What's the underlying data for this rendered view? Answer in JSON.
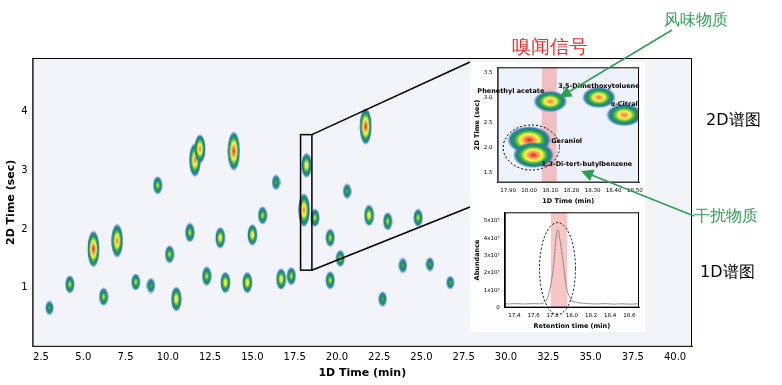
{
  "chart_data": [
    {
      "type": "scatter",
      "xlabel": "1D Time (min)",
      "ylabel": "2D Time (sec)",
      "xlim": [
        2,
        41
      ],
      "xticks": [
        2.5,
        {
          "value": 5,
          "label": "5.0"
        },
        7.5,
        {
          "value": 10,
          "label": "10.0"
        },
        12.5,
        {
          "value": 15,
          "label": "15.0"
        },
        17.5,
        {
          "value": 20,
          "label": "20.0"
        },
        22.5,
        {
          "value": 25,
          "label": "25.0"
        },
        27.5,
        {
          "value": 30,
          "label": "30.0"
        },
        32.5,
        {
          "value": 35,
          "label": "35.0"
        },
        37.5,
        {
          "value": 40,
          "label": "40.0"
        }
      ],
      "ylim": [
        0,
        4.9
      ],
      "yticks": [
        1,
        2,
        3,
        4
      ],
      "grid": false,
      "peaks": {
        "x": [
          3.0,
          4.2,
          5.6,
          7.0,
          6.2,
          9.4,
          9.0,
          10.1,
          10.5,
          11.3,
          11.6,
          11.9,
          13.1,
          13.9,
          13.4,
          14.7,
          15.0,
          15.6,
          16.4,
          16.7,
          17.3,
          18.05,
          18.2,
          18.7,
          19.6,
          19.6,
          20.2,
          20.6,
          21.7,
          21.9,
          22.7,
          23.0,
          23.9,
          24.8,
          26.7,
          12.3,
          8.1,
          25.5
        ],
        "y": [
          0.66,
          1.06,
          1.66,
          1.8,
          0.85,
          2.74,
          1.04,
          1.57,
          0.81,
          1.94,
          3.17,
          3.36,
          1.85,
          3.32,
          1.09,
          1.09,
          1.9,
          2.23,
          2.79,
          1.15,
          1.2,
          2.32,
          3.08,
          2.19,
          1.85,
          1.13,
          1.5,
          2.64,
          3.74,
          2.23,
          0.81,
          2.13,
          1.38,
          2.19,
          1.09,
          1.2,
          1.1,
          1.4
        ],
        "intensity": [
          0.35,
          0.5,
          0.95,
          0.9,
          0.5,
          0.5,
          0.4,
          0.5,
          0.7,
          0.55,
          0.9,
          0.8,
          0.6,
          1.0,
          0.6,
          0.6,
          0.6,
          0.5,
          0.4,
          0.6,
          0.5,
          0.9,
          0.7,
          0.5,
          0.5,
          0.5,
          0.45,
          0.4,
          0.95,
          0.6,
          0.4,
          0.5,
          0.4,
          0.5,
          0.3,
          0.55,
          0.45,
          0.35
        ]
      }
    },
    {
      "type": "scatter",
      "xlabel": "1D Time (min)",
      "ylabel": "2D Time (sec)",
      "xlim": [
        17.85,
        18.52
      ],
      "xticks": [
        {
          "value": 17.9,
          "label": "17.90"
        },
        {
          "value": 18,
          "label": "18.00"
        },
        {
          "value": 18.1,
          "label": "18.10"
        },
        {
          "value": 18.2,
          "label": "18.20"
        },
        {
          "value": 18.3,
          "label": "18.30"
        },
        {
          "value": 18.4,
          "label": "18.40"
        },
        {
          "value": 18.5,
          "label": "18.50"
        }
      ],
      "ylim": [
        1.3,
        3.6
      ],
      "yticks": [
        1.5,
        {
          "value": 2,
          "label": "2.0"
        },
        2.5,
        {
          "value": 3,
          "label": "3.0"
        },
        3.5
      ],
      "grid": false,
      "highlight": [
        18.06,
        18.13
      ],
      "peaks": {
        "names": [
          "Phenethyl acetate",
          "3,5-Dimethoxytoluene",
          "α-Citral",
          "Geraniol",
          "1,3-Di-tert-butylbenzene"
        ],
        "x": [
          18.1,
          18.33,
          18.45,
          18.0,
          18.02
        ],
        "y": [
          2.92,
          3.0,
          2.65,
          2.15,
          1.85
        ],
        "intensity": [
          0.8,
          0.8,
          0.85,
          1.0,
          0.95
        ]
      }
    },
    {
      "type": "line",
      "xlabel": "Retention time (min)",
      "ylabel": "Abundance",
      "xlim": [
        17.3,
        18.7
      ],
      "xticks": [
        17.4,
        17.6,
        17.8,
        {
          "value": 18,
          "label": "18.0"
        },
        18.2,
        18.4,
        18.6
      ],
      "ylim": [
        0,
        550000
      ],
      "yticks": [
        0,
        {
          "value": 100000,
          "label": "1x10⁵"
        },
        {
          "value": 200000,
          "label": "2x10⁵"
        },
        {
          "value": 300000,
          "label": "3x10⁵"
        },
        {
          "value": 400000,
          "label": "4x10⁵"
        },
        {
          "value": 500000,
          "label": "5x10⁵"
        }
      ],
      "grid": false,
      "color": "#8c8c8c",
      "highlight": [
        17.78,
        17.95
      ],
      "x": [
        17.3,
        17.35,
        17.4,
        17.45,
        17.5,
        17.55,
        17.6,
        17.65,
        17.7,
        17.75,
        17.8,
        17.85,
        17.9,
        17.95,
        18.0,
        18.05,
        18.1,
        18.15,
        18.2,
        18.25,
        18.3,
        18.35,
        18.4,
        18.45,
        18.5,
        18.55,
        18.6,
        18.65,
        18.7
      ],
      "values": [
        22000,
        21000,
        23000,
        22000,
        21000,
        22000,
        23000,
        22000,
        25000,
        60000,
        200000,
        450000,
        300000,
        100000,
        40000,
        30000,
        26000,
        24000,
        22000,
        21000,
        22000,
        23000,
        21000,
        20000,
        22000,
        21000,
        20000,
        21000,
        22000
      ]
    }
  ],
  "annotations": [
    {
      "text": "嗅闻信号",
      "color": "#e8312f"
    },
    {
      "text": "风味物质",
      "color": "#2e9e4f"
    },
    {
      "text": "2D谱图",
      "color": "#000000"
    },
    {
      "text": "干扰物质",
      "color": "#2e9e4f"
    },
    {
      "text": "1D谱图",
      "color": "#000000"
    }
  ]
}
